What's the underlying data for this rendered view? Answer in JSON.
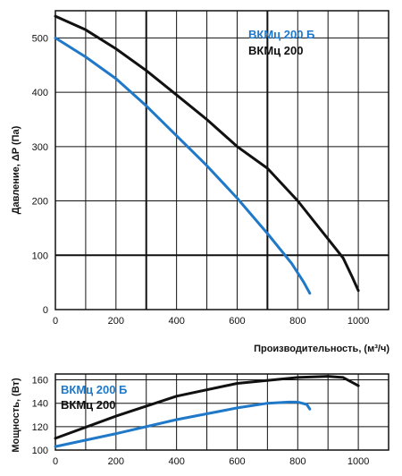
{
  "colors": {
    "black_series": "#111111",
    "blue_series": "#1f78c8",
    "grid": "#111111"
  },
  "chart_data": [
    {
      "type": "line",
      "xlabel": "Производительность, (м³/ч)",
      "ylabel": "Давление, ΔP (Па)",
      "xlim": [
        0,
        1100
      ],
      "ylim": [
        0,
        550
      ],
      "x_ticks": [
        "0",
        "200",
        "400",
        "600",
        "800",
        "1000"
      ],
      "y_ticks": [
        "0",
        "100",
        "200",
        "300",
        "400",
        "500"
      ],
      "legend": "top-right",
      "series": [
        {
          "name": "ВКМц 200 Б",
          "color": "#1f78c8",
          "points": [
            [
              0,
              500
            ],
            [
              100,
              465
            ],
            [
              200,
              425
            ],
            [
              300,
              375
            ],
            [
              400,
              320
            ],
            [
              500,
              265
            ],
            [
              600,
              205
            ],
            [
              700,
              140
            ],
            [
              780,
              85
            ],
            [
              820,
              50
            ],
            [
              840,
              30
            ]
          ]
        },
        {
          "name": "ВКМц 200",
          "color": "#111111",
          "points": [
            [
              0,
              540
            ],
            [
              100,
              515
            ],
            [
              200,
              480
            ],
            [
              300,
              440
            ],
            [
              400,
              395
            ],
            [
              500,
              350
            ],
            [
              600,
              300
            ],
            [
              700,
              260
            ],
            [
              800,
              200
            ],
            [
              900,
              130
            ],
            [
              950,
              95
            ],
            [
              980,
              60
            ],
            [
              1000,
              35
            ]
          ]
        }
      ]
    },
    {
      "type": "line",
      "xlabel": "",
      "ylabel": "Мощность, (Вт)",
      "xlim": [
        0,
        1100
      ],
      "ylim": [
        100,
        165
      ],
      "x_ticks": [
        "0",
        "200",
        "400",
        "600",
        "800",
        "1000"
      ],
      "y_ticks": [
        "100",
        "120",
        "140",
        "160"
      ],
      "legend": "top-left",
      "series": [
        {
          "name": "ВКМц 200 Б",
          "color": "#1f78c8",
          "points": [
            [
              0,
              103
            ],
            [
              200,
              114
            ],
            [
              400,
              126
            ],
            [
              600,
              136
            ],
            [
              700,
              140
            ],
            [
              770,
              141
            ],
            [
              800,
              141
            ],
            [
              830,
              139
            ],
            [
              840,
              135
            ]
          ]
        },
        {
          "name": "ВКМц 200",
          "color": "#111111",
          "points": [
            [
              0,
              110
            ],
            [
              200,
              129
            ],
            [
              400,
              146
            ],
            [
              600,
              157
            ],
            [
              800,
              162
            ],
            [
              900,
              163
            ],
            [
              950,
              162
            ],
            [
              1000,
              155
            ]
          ]
        }
      ]
    }
  ]
}
